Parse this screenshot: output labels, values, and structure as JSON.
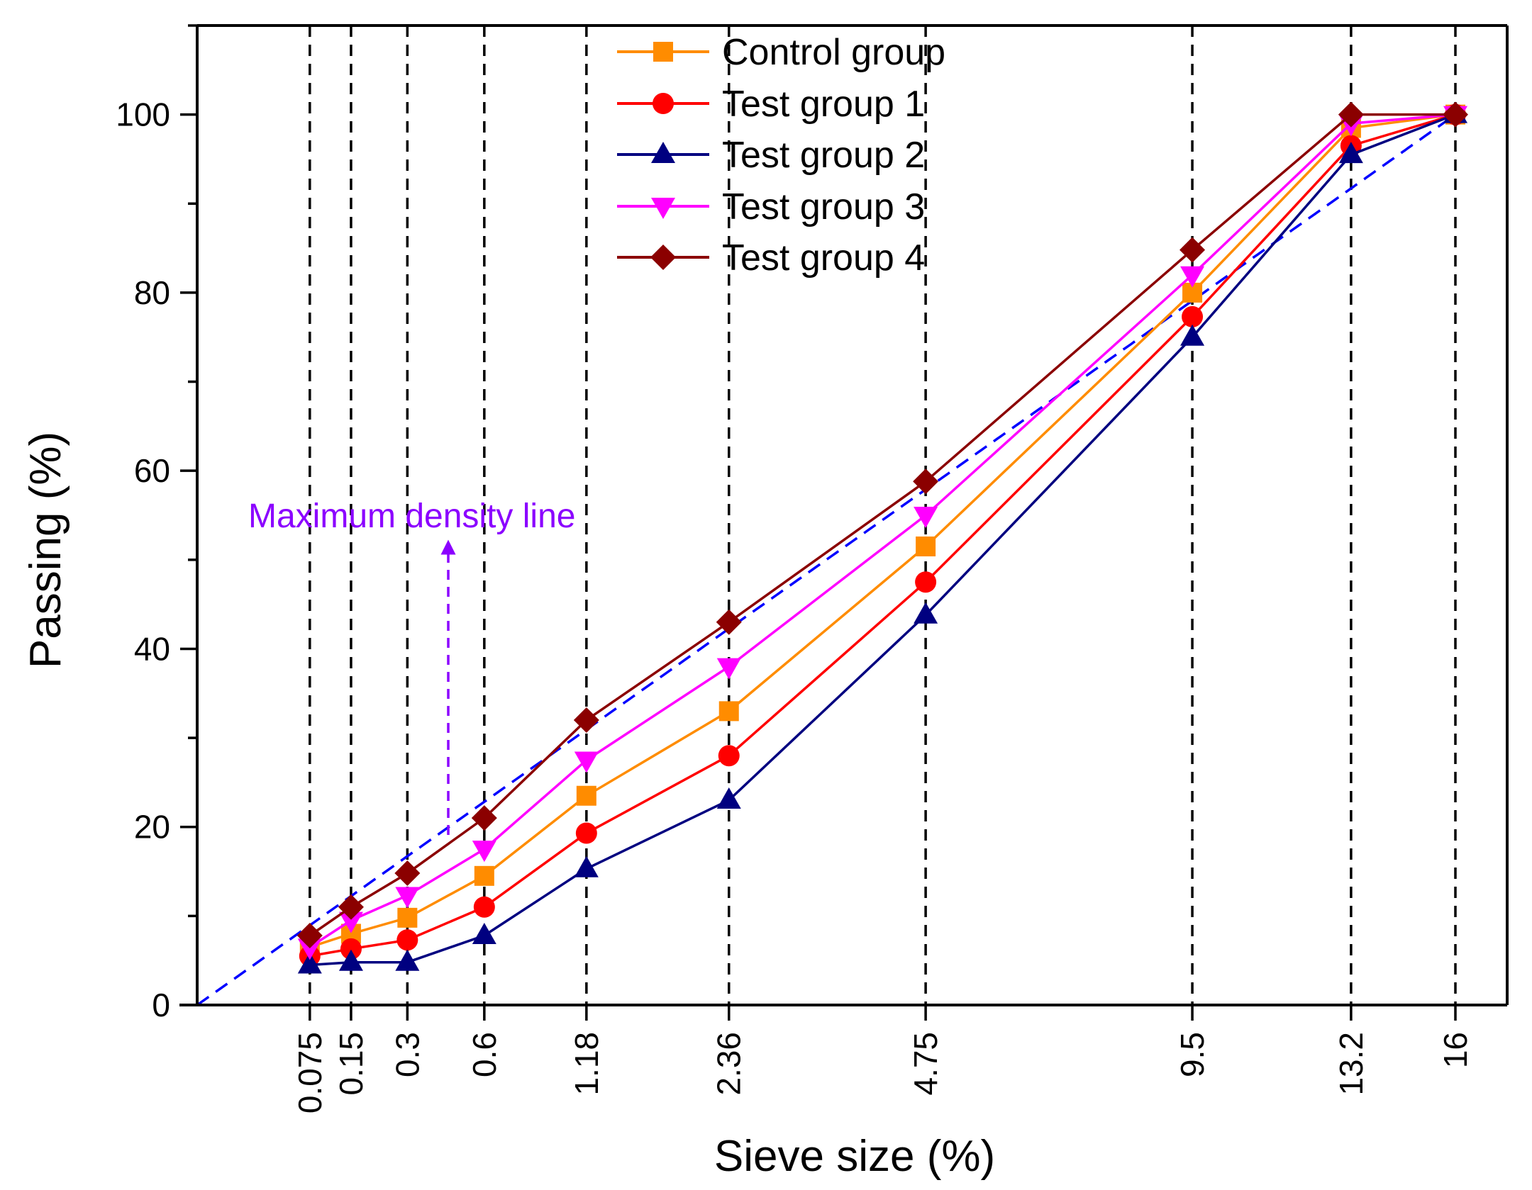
{
  "chart_data": {
    "type": "line",
    "title": "",
    "xlabel": "Sieve size (%)",
    "ylabel": "Passing (%)",
    "x_scale": "power 0.45",
    "xlim": [
      0,
      17.5
    ],
    "ylim": [
      0,
      110
    ],
    "y_ticks": [
      0,
      20,
      40,
      60,
      80,
      100
    ],
    "categories": [
      "0.075",
      "0.15",
      "0.3",
      "0.6",
      "1.18",
      "2.36",
      "4.75",
      "9.5",
      "13.2",
      "16"
    ],
    "x": [
      0.075,
      0.15,
      0.3,
      0.6,
      1.18,
      2.36,
      4.75,
      9.5,
      13.2,
      16
    ],
    "grid": "vertical dashed lines at each sieve size",
    "legend_position": "top-center",
    "series": [
      {
        "name": "Control group",
        "marker": "square",
        "color": "#FF8C00",
        "values": [
          6.5,
          8.0,
          9.8,
          14.5,
          23.5,
          33.0,
          51.5,
          80.0,
          98.5,
          100
        ]
      },
      {
        "name": "Test group 1",
        "marker": "circle",
        "color": "#FF0000",
        "values": [
          5.5,
          6.3,
          7.3,
          11.0,
          19.3,
          28.0,
          47.5,
          77.3,
          96.5,
          100
        ]
      },
      {
        "name": "Test group 2",
        "marker": "triangle-up",
        "color": "#000080",
        "values": [
          4.5,
          4.8,
          4.8,
          7.8,
          15.3,
          23.0,
          43.8,
          75.0,
          95.5,
          100
        ]
      },
      {
        "name": "Test group 3",
        "marker": "triangle-down",
        "color": "#FF00FF",
        "values": [
          6.5,
          9.5,
          12.3,
          17.5,
          27.5,
          38.0,
          55.0,
          82.0,
          99.0,
          100
        ]
      },
      {
        "name": "Test group 4",
        "marker": "diamond",
        "color": "#8B0000",
        "values": [
          7.8,
          11.0,
          14.8,
          21.0,
          32.0,
          43.0,
          58.8,
          84.8,
          100,
          100
        ]
      }
    ],
    "reference_line": {
      "name": "Maximum density line",
      "color": "#0000FF",
      "style": "dashed",
      "formula": "100 * (d / 16)^0.45"
    },
    "annotations": [
      {
        "text": "Maximum density line",
        "color": "#8B00FF"
      }
    ]
  }
}
